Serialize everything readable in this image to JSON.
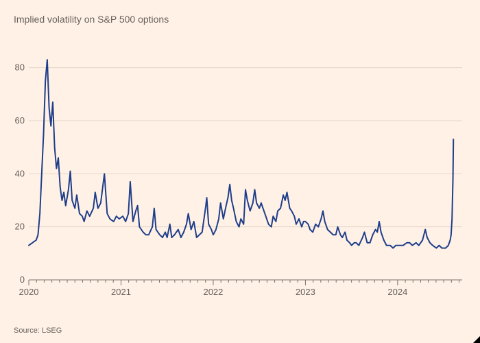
{
  "subtitle": "Implied volatility on S&P 500 options",
  "source": "Source: LSEG",
  "chart": {
    "type": "line",
    "background_color": "#fff1e5",
    "grid_color": "#e3d6c9",
    "axis_color": "#7a726d",
    "label_color": "#66605c",
    "label_fontsize": 13,
    "line_color": "#1f3e8a",
    "line_width": 2,
    "ylim": [
      0,
      90
    ],
    "ytick_step": 20,
    "yticks": [
      0,
      20,
      40,
      60,
      80
    ],
    "x_start": 2020.0,
    "x_end": 2024.7,
    "x_major_ticks": [
      2020,
      2021,
      2022,
      2023,
      2024
    ],
    "x_minor_per_year": 12,
    "series": [
      {
        "x": 2020.0,
        "y": 13
      },
      {
        "x": 2020.04,
        "y": 14
      },
      {
        "x": 2020.08,
        "y": 15
      },
      {
        "x": 2020.1,
        "y": 17
      },
      {
        "x": 2020.12,
        "y": 25
      },
      {
        "x": 2020.14,
        "y": 40
      },
      {
        "x": 2020.16,
        "y": 55
      },
      {
        "x": 2020.18,
        "y": 75
      },
      {
        "x": 2020.2,
        "y": 83
      },
      {
        "x": 2020.22,
        "y": 65
      },
      {
        "x": 2020.24,
        "y": 58
      },
      {
        "x": 2020.26,
        "y": 67
      },
      {
        "x": 2020.28,
        "y": 50
      },
      {
        "x": 2020.3,
        "y": 42
      },
      {
        "x": 2020.32,
        "y": 46
      },
      {
        "x": 2020.34,
        "y": 35
      },
      {
        "x": 2020.36,
        "y": 30
      },
      {
        "x": 2020.38,
        "y": 33
      },
      {
        "x": 2020.4,
        "y": 28
      },
      {
        "x": 2020.43,
        "y": 34
      },
      {
        "x": 2020.45,
        "y": 41
      },
      {
        "x": 2020.47,
        "y": 30
      },
      {
        "x": 2020.5,
        "y": 27
      },
      {
        "x": 2020.52,
        "y": 32
      },
      {
        "x": 2020.55,
        "y": 25
      },
      {
        "x": 2020.58,
        "y": 24
      },
      {
        "x": 2020.6,
        "y": 22
      },
      {
        "x": 2020.63,
        "y": 26
      },
      {
        "x": 2020.66,
        "y": 24
      },
      {
        "x": 2020.7,
        "y": 27
      },
      {
        "x": 2020.72,
        "y": 33
      },
      {
        "x": 2020.75,
        "y": 27
      },
      {
        "x": 2020.78,
        "y": 29
      },
      {
        "x": 2020.82,
        "y": 40
      },
      {
        "x": 2020.85,
        "y": 25
      },
      {
        "x": 2020.88,
        "y": 23
      },
      {
        "x": 2020.92,
        "y": 22
      },
      {
        "x": 2020.95,
        "y": 24
      },
      {
        "x": 2020.98,
        "y": 23
      },
      {
        "x": 2021.02,
        "y": 24
      },
      {
        "x": 2021.05,
        "y": 22
      },
      {
        "x": 2021.08,
        "y": 25
      },
      {
        "x": 2021.1,
        "y": 37
      },
      {
        "x": 2021.13,
        "y": 22
      },
      {
        "x": 2021.16,
        "y": 26
      },
      {
        "x": 2021.18,
        "y": 28
      },
      {
        "x": 2021.2,
        "y": 20
      },
      {
        "x": 2021.24,
        "y": 18
      },
      {
        "x": 2021.27,
        "y": 17
      },
      {
        "x": 2021.3,
        "y": 17
      },
      {
        "x": 2021.34,
        "y": 20
      },
      {
        "x": 2021.36,
        "y": 27
      },
      {
        "x": 2021.38,
        "y": 19
      },
      {
        "x": 2021.42,
        "y": 17
      },
      {
        "x": 2021.45,
        "y": 16
      },
      {
        "x": 2021.48,
        "y": 18
      },
      {
        "x": 2021.5,
        "y": 16
      },
      {
        "x": 2021.53,
        "y": 21
      },
      {
        "x": 2021.55,
        "y": 16
      },
      {
        "x": 2021.58,
        "y": 17
      },
      {
        "x": 2021.62,
        "y": 19
      },
      {
        "x": 2021.65,
        "y": 16
      },
      {
        "x": 2021.68,
        "y": 18
      },
      {
        "x": 2021.71,
        "y": 21
      },
      {
        "x": 2021.73,
        "y": 25
      },
      {
        "x": 2021.76,
        "y": 19
      },
      {
        "x": 2021.79,
        "y": 22
      },
      {
        "x": 2021.82,
        "y": 16
      },
      {
        "x": 2021.85,
        "y": 17
      },
      {
        "x": 2021.88,
        "y": 18
      },
      {
        "x": 2021.92,
        "y": 28
      },
      {
        "x": 2021.93,
        "y": 31
      },
      {
        "x": 2021.95,
        "y": 21
      },
      {
        "x": 2021.98,
        "y": 19
      },
      {
        "x": 2022.0,
        "y": 17
      },
      {
        "x": 2022.03,
        "y": 19
      },
      {
        "x": 2022.06,
        "y": 23
      },
      {
        "x": 2022.08,
        "y": 29
      },
      {
        "x": 2022.11,
        "y": 23
      },
      {
        "x": 2022.14,
        "y": 28
      },
      {
        "x": 2022.16,
        "y": 31
      },
      {
        "x": 2022.18,
        "y": 36
      },
      {
        "x": 2022.2,
        "y": 30
      },
      {
        "x": 2022.22,
        "y": 27
      },
      {
        "x": 2022.25,
        "y": 22
      },
      {
        "x": 2022.28,
        "y": 20
      },
      {
        "x": 2022.3,
        "y": 23
      },
      {
        "x": 2022.33,
        "y": 21
      },
      {
        "x": 2022.35,
        "y": 34
      },
      {
        "x": 2022.37,
        "y": 30
      },
      {
        "x": 2022.4,
        "y": 26
      },
      {
        "x": 2022.43,
        "y": 29
      },
      {
        "x": 2022.45,
        "y": 34
      },
      {
        "x": 2022.47,
        "y": 29
      },
      {
        "x": 2022.5,
        "y": 27
      },
      {
        "x": 2022.52,
        "y": 29
      },
      {
        "x": 2022.55,
        "y": 26
      },
      {
        "x": 2022.58,
        "y": 23
      },
      {
        "x": 2022.6,
        "y": 21
      },
      {
        "x": 2022.63,
        "y": 20
      },
      {
        "x": 2022.65,
        "y": 24
      },
      {
        "x": 2022.68,
        "y": 22
      },
      {
        "x": 2022.7,
        "y": 26
      },
      {
        "x": 2022.73,
        "y": 27
      },
      {
        "x": 2022.76,
        "y": 32
      },
      {
        "x": 2022.78,
        "y": 30
      },
      {
        "x": 2022.8,
        "y": 33
      },
      {
        "x": 2022.83,
        "y": 27
      },
      {
        "x": 2022.85,
        "y": 26
      },
      {
        "x": 2022.88,
        "y": 24
      },
      {
        "x": 2022.9,
        "y": 21
      },
      {
        "x": 2022.93,
        "y": 23
      },
      {
        "x": 2022.96,
        "y": 20
      },
      {
        "x": 2022.98,
        "y": 22
      },
      {
        "x": 2023.0,
        "y": 22
      },
      {
        "x": 2023.03,
        "y": 21
      },
      {
        "x": 2023.05,
        "y": 19
      },
      {
        "x": 2023.08,
        "y": 18
      },
      {
        "x": 2023.11,
        "y": 21
      },
      {
        "x": 2023.14,
        "y": 20
      },
      {
        "x": 2023.17,
        "y": 23
      },
      {
        "x": 2023.19,
        "y": 26
      },
      {
        "x": 2023.21,
        "y": 22
      },
      {
        "x": 2023.24,
        "y": 19
      },
      {
        "x": 2023.27,
        "y": 18
      },
      {
        "x": 2023.3,
        "y": 17
      },
      {
        "x": 2023.33,
        "y": 17
      },
      {
        "x": 2023.35,
        "y": 20
      },
      {
        "x": 2023.38,
        "y": 17
      },
      {
        "x": 2023.4,
        "y": 16
      },
      {
        "x": 2023.43,
        "y": 18
      },
      {
        "x": 2023.45,
        "y": 15
      },
      {
        "x": 2023.48,
        "y": 14
      },
      {
        "x": 2023.5,
        "y": 13
      },
      {
        "x": 2023.53,
        "y": 14
      },
      {
        "x": 2023.55,
        "y": 14
      },
      {
        "x": 2023.58,
        "y": 13
      },
      {
        "x": 2023.62,
        "y": 16
      },
      {
        "x": 2023.64,
        "y": 18
      },
      {
        "x": 2023.67,
        "y": 14
      },
      {
        "x": 2023.7,
        "y": 14
      },
      {
        "x": 2023.73,
        "y": 17
      },
      {
        "x": 2023.76,
        "y": 19
      },
      {
        "x": 2023.78,
        "y": 18
      },
      {
        "x": 2023.8,
        "y": 22
      },
      {
        "x": 2023.82,
        "y": 18
      },
      {
        "x": 2023.85,
        "y": 15
      },
      {
        "x": 2023.88,
        "y": 13
      },
      {
        "x": 2023.92,
        "y": 13
      },
      {
        "x": 2023.95,
        "y": 12
      },
      {
        "x": 2023.98,
        "y": 13
      },
      {
        "x": 2024.0,
        "y": 13
      },
      {
        "x": 2024.03,
        "y": 13
      },
      {
        "x": 2024.06,
        "y": 13
      },
      {
        "x": 2024.1,
        "y": 14
      },
      {
        "x": 2024.13,
        "y": 14
      },
      {
        "x": 2024.16,
        "y": 13
      },
      {
        "x": 2024.2,
        "y": 14
      },
      {
        "x": 2024.23,
        "y": 13
      },
      {
        "x": 2024.27,
        "y": 15
      },
      {
        "x": 2024.3,
        "y": 19
      },
      {
        "x": 2024.32,
        "y": 16
      },
      {
        "x": 2024.35,
        "y": 14
      },
      {
        "x": 2024.38,
        "y": 13
      },
      {
        "x": 2024.42,
        "y": 12
      },
      {
        "x": 2024.45,
        "y": 13
      },
      {
        "x": 2024.48,
        "y": 12
      },
      {
        "x": 2024.52,
        "y": 12
      },
      {
        "x": 2024.55,
        "y": 13
      },
      {
        "x": 2024.57,
        "y": 15
      },
      {
        "x": 2024.58,
        "y": 17
      },
      {
        "x": 2024.59,
        "y": 23
      },
      {
        "x": 2024.6,
        "y": 38
      },
      {
        "x": 2024.605,
        "y": 53
      }
    ]
  }
}
